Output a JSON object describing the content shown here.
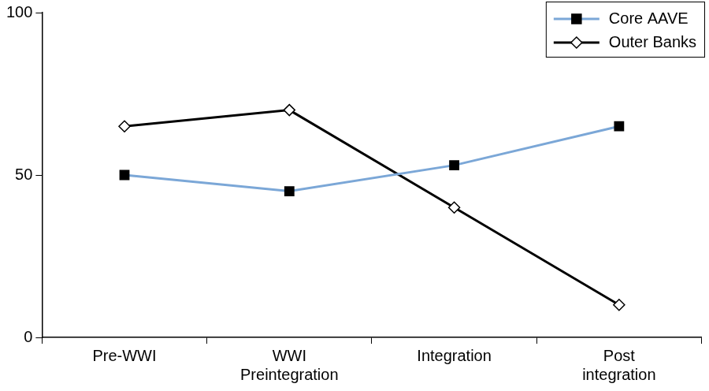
{
  "chart_data": {
    "type": "line",
    "categories": [
      "Pre-WWI",
      "WWI\nPreintegration",
      "Integration",
      "Post\nintegration"
    ],
    "series": [
      {
        "name": "Core AAVE",
        "color": "#7ba7d7",
        "marker": "square",
        "values": [
          50,
          45,
          53,
          65
        ]
      },
      {
        "name": "Outer Banks",
        "color": "#000000",
        "marker": "diamond-open",
        "values": [
          65,
          70,
          40,
          10
        ]
      }
    ],
    "ylim": [
      0,
      100
    ],
    "yticks": [
      0,
      50,
      100
    ],
    "grid": false,
    "legend": "upper right"
  }
}
